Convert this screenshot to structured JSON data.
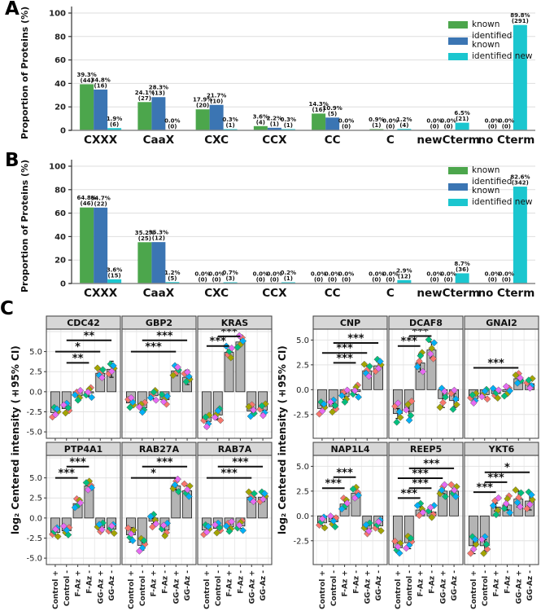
{
  "panels": {
    "a_letter": "A",
    "b_letter": "B",
    "c_letter": "C"
  },
  "chart_data": [
    {
      "id": "A",
      "type": "bar",
      "title": "",
      "ylabel": "Proportion of Proteins (%)",
      "ylim": [
        0,
        100
      ],
      "yticks": [
        0,
        20,
        40,
        60,
        80,
        100
      ],
      "grid": true,
      "legend_position": "top-right",
      "categories": [
        "CXXX",
        "CaaX",
        "CXC",
        "CCX",
        "CC",
        "C",
        "newCterm",
        "no Cterm"
      ],
      "series": [
        {
          "name": "known",
          "color": "#4CA64C",
          "values": [
            39.3,
            24.1,
            17.9,
            3.6,
            14.3,
            0.9,
            0.0,
            0.0
          ],
          "counts": [
            44,
            27,
            20,
            4,
            16,
            1,
            0,
            0
          ]
        },
        {
          "name": "identified known",
          "color": "#3B75B3",
          "values": [
            34.8,
            28.3,
            21.7,
            2.2,
            10.9,
            0.0,
            0.0,
            0.0
          ],
          "counts": [
            16,
            13,
            10,
            1,
            5,
            0,
            0,
            0
          ]
        },
        {
          "name": "identified new",
          "color": "#1BC6CF",
          "values": [
            1.9,
            0.0,
            0.3,
            0.3,
            0.0,
            1.2,
            6.5,
            89.8
          ],
          "counts": [
            6,
            0,
            1,
            1,
            0,
            4,
            21,
            291
          ]
        }
      ]
    },
    {
      "id": "B",
      "type": "bar",
      "title": "",
      "ylabel": "Proportion of Proteins (%)",
      "ylim": [
        0,
        100
      ],
      "yticks": [
        0,
        20,
        40,
        60,
        80,
        100
      ],
      "grid": true,
      "legend_position": "top-right",
      "categories": [
        "CXXX",
        "CaaX",
        "CXC",
        "CCX",
        "CC",
        "C",
        "newCterm",
        "no Cterm"
      ],
      "series": [
        {
          "name": "known",
          "color": "#4CA64C",
          "values": [
            64.8,
            35.2,
            0.0,
            0.0,
            0.0,
            0.0,
            0.0,
            0.0
          ],
          "counts": [
            46,
            25,
            0,
            0,
            0,
            0,
            0,
            0
          ]
        },
        {
          "name": "identified known",
          "color": "#3B75B3",
          "values": [
            64.7,
            35.3,
            0.0,
            0.0,
            0.0,
            0.0,
            0.0,
            0.0
          ],
          "counts": [
            22,
            12,
            0,
            0,
            0,
            0,
            0,
            0
          ]
        },
        {
          "name": "identified new",
          "color": "#1BC6CF",
          "values": [
            3.6,
            1.2,
            0.7,
            0.2,
            0.0,
            2.9,
            8.7,
            82.6
          ],
          "counts": [
            15,
            5,
            3,
            1,
            0,
            12,
            36,
            342
          ]
        }
      ]
    },
    {
      "id": "C",
      "type": "bar-scatter-grid",
      "ylabel": "log₂ Centered intensity (±95% CI)",
      "x_categories": [
        "Control +",
        "Control -",
        "F-Az +",
        "F-Az -",
        "GG-Az +",
        "GG-Az -"
      ],
      "bar_color": "#B4B4B4",
      "bar_border": "#1A1A1A",
      "header_fill": "#D7D7D7",
      "replicate_colors": [
        "#F8766D",
        "#A3A500",
        "#00BF7D",
        "#00B0F6",
        "#E76BF3"
      ],
      "jitter": [
        -0.55,
        0.45,
        0.1,
        -0.25,
        0.65
      ],
      "groups": [
        {
          "yticks": [
            5.0,
            2.5,
            0.0,
            -2.5,
            -5.0
          ],
          "ylim": [
            -5.8,
            7.8
          ],
          "charts": [
            {
              "title": "CDC42",
              "bars": [
                -2.6,
                -2.1,
                -0.5,
                -0.15,
                2.3,
                2.8
              ],
              "ci": [
                0.35,
                0.3,
                0.5,
                0.45,
                0.5,
                1.0
              ],
              "spread": 1.0,
              "sig": [
                [
                  2,
                  4,
                  "**",
                  3.6
                ],
                [
                  1,
                  5,
                  "*",
                  5.0
                ],
                [
                  2,
                  6,
                  "**",
                  6.4
                ]
              ]
            },
            {
              "title": "GBP2",
              "bars": [
                -1.4,
                -2.0,
                -0.5,
                -1.0,
                2.6,
                1.8
              ],
              "ci": [
                0.3,
                0.35,
                0.4,
                0.5,
                0.6,
                0.9
              ],
              "spread": 1.0,
              "sig": [
                [
                  1,
                  5,
                  "***",
                  5.0
                ],
                [
                  2,
                  6,
                  "***",
                  6.4
                ]
              ]
            },
            {
              "title": "KRAS",
              "bars": [
                -3.7,
                -2.9,
                4.9,
                6.2,
                -2.4,
                -2.3
              ],
              "ci": [
                0.8,
                0.6,
                0.35,
                0.5,
                0.5,
                0.45
              ],
              "spread": 1.2,
              "sig": [
                [
                  1,
                  3,
                  "***",
                  5.7
                ],
                [
                  2,
                  4,
                  "***",
                  6.9
                ]
              ]
            },
            {
              "title": "PTP4A1",
              "bars": [
                -1.8,
                -1.6,
                1.8,
                4.0,
                -1.2,
                -1.4
              ],
              "ci": [
                0.3,
                0.25,
                0.45,
                0.4,
                0.3,
                0.35
              ],
              "spread": 0.9,
              "sig": [
                [
                  1,
                  3,
                  "***",
                  5.0
                ],
                [
                  2,
                  4,
                  "***",
                  6.4
                ]
              ]
            },
            {
              "title": "RAB27A",
              "bars": [
                -2.1,
                -3.4,
                -0.4,
                -1.5,
                4.0,
                3.4
              ],
              "ci": [
                0.9,
                0.6,
                0.3,
                0.5,
                0.5,
                0.6
              ],
              "spread": 1.3,
              "sig": [
                [
                  1,
                  5,
                  "*",
                  5.0
                ],
                [
                  2,
                  6,
                  "***",
                  6.4
                ]
              ]
            },
            {
              "title": "RAB7A",
              "bars": [
                -1.5,
                -1.3,
                -1.1,
                -1.0,
                2.6,
                2.6
              ],
              "ci": [
                0.35,
                0.3,
                0.3,
                0.3,
                0.6,
                0.55
              ],
              "spread": 1.0,
              "sig": [
                [
                  1,
                  5,
                  "***",
                  5.0
                ],
                [
                  2,
                  6,
                  "***",
                  6.4
                ]
              ]
            }
          ]
        },
        {
          "yticks": [
            5.0,
            2.5,
            0.0,
            -2.5
          ],
          "ylim": [
            -4.9,
            6.1
          ],
          "charts": [
            {
              "title": "CNP",
              "bars": [
                -1.9,
                -1.7,
                -0.7,
                -0.2,
                1.9,
                2.4
              ],
              "ci": [
                0.35,
                0.3,
                0.3,
                0.3,
                0.5,
                0.4
              ],
              "spread": 1.0,
              "sig": [
                [
                  2,
                  4,
                  "***",
                  2.7
                ],
                [
                  1,
                  5,
                  "***",
                  3.7
                ],
                [
                  2,
                  6,
                  "***",
                  4.7
                ]
              ]
            },
            {
              "title": "DCAF8",
              "bars": [
                -2.4,
                -2.2,
                2.7,
                4.0,
                -0.9,
                -1.1
              ],
              "ci": [
                0.5,
                0.9,
                0.9,
                0.8,
                0.9,
                0.7
              ],
              "spread": 1.6,
              "sig": [
                [
                  1,
                  3,
                  "***",
                  4.4
                ],
                [
                  2,
                  4,
                  "***",
                  5.4
                ]
              ]
            },
            {
              "title": "GNAI2",
              "bars": [
                -0.9,
                -0.5,
                -0.4,
                -0.2,
                1.1,
                0.6
              ],
              "ci": [
                0.3,
                0.25,
                0.3,
                0.25,
                0.35,
                0.3
              ],
              "spread": 0.8,
              "sig": [
                [
                  1,
                  5,
                  "***",
                  2.2
                ]
              ]
            },
            {
              "title": "NAP1L4",
              "bars": [
                -0.7,
                -0.6,
                1.2,
                2.3,
                -1.3,
                -1.0
              ],
              "ci": [
                0.3,
                0.35,
                0.5,
                0.5,
                0.3,
                0.3
              ],
              "spread": 0.9,
              "sig": [
                [
                  1,
                  3,
                  "***",
                  2.8
                ],
                [
                  2,
                  4,
                  "***",
                  3.9
                ]
              ]
            },
            {
              "title": "REEP5",
              "bars": [
                -3.2,
                -2.7,
                0.6,
                0.4,
                2.5,
                2.5
              ],
              "ci": [
                0.5,
                0.6,
                0.3,
                0.4,
                0.25,
                0.3
              ],
              "spread": 1.0,
              "sig": [
                [
                  1,
                  3,
                  "***",
                  1.8
                ],
                [
                  2,
                  4,
                  "***",
                  2.8
                ],
                [
                  1,
                  5,
                  "***",
                  3.8
                ],
                [
                  2,
                  6,
                  "***",
                  4.8
                ]
              ]
            },
            {
              "title": "YKT6",
              "bars": [
                -3.0,
                -3.0,
                0.9,
                1.1,
                1.7,
                1.5
              ],
              "ci": [
                0.8,
                0.6,
                0.4,
                0.5,
                0.8,
                0.9
              ],
              "spread": 1.4,
              "sig": [
                [
                  1,
                  3,
                  "***",
                  2.4
                ],
                [
                  2,
                  4,
                  "***",
                  3.4
                ],
                [
                  2,
                  6,
                  "*",
                  4.4
                ]
              ]
            }
          ]
        }
      ]
    }
  ]
}
